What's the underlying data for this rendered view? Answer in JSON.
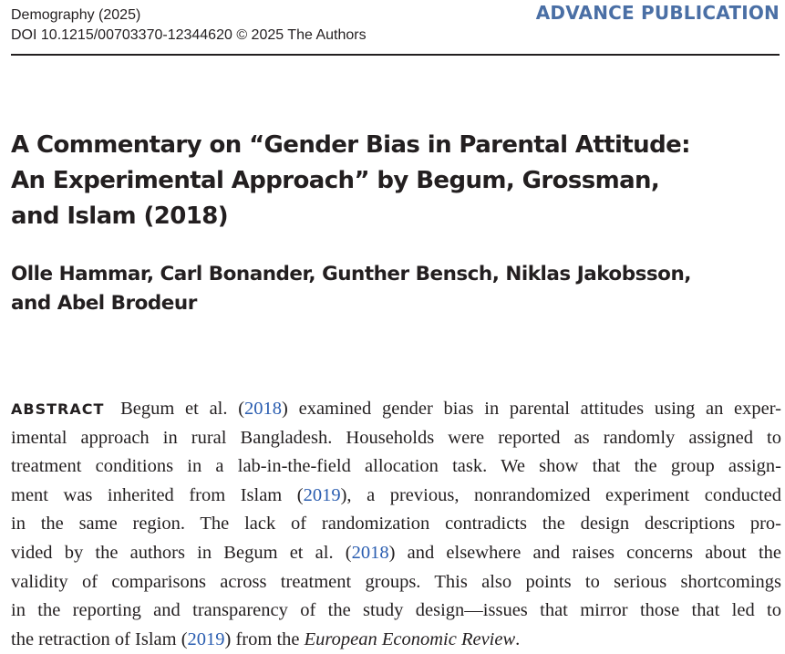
{
  "header": {
    "journal": "Demography (2025)",
    "doi_line": "DOI 10.1215/00703370-12344620  © 2025 The Authors",
    "badge": "ADVANCE PUBLICATION"
  },
  "title": {
    "lines": [
      "A Commentary on “Gender Bias in Parental Attitude:",
      "An Experimental Approach” by Begum, Grossman,",
      "and Islam (2018)"
    ]
  },
  "authors": {
    "lines": [
      "Olle Hammar, Carl Bonander, Gunther Bensch, Niklas Jakobsson,",
      "and Abel Brodeur"
    ]
  },
  "abstract": {
    "label": "ABSTRACT",
    "l1_a": "Begum et al. (",
    "l1_cite": "2018",
    "l1_b": ") examined gender bias in parental attitudes using an exper-",
    "l2": "imental approach in rural Bangladesh. Households were reported as randomly assigned to",
    "l3": "treatment conditions in a lab-in-the-field allocation task. We show that the group assign-",
    "l4_a": "ment was inherited from Islam (",
    "l4_cite": "2019",
    "l4_b": "), a previous, nonrandomized experiment conducted",
    "l5": "in the same region. The lack of randomization contradicts the design descriptions pro-",
    "l6_a": "vided by the authors in Begum et al. (",
    "l6_cite": "2018",
    "l6_b": ") and elsewhere and raises concerns about the",
    "l7": "validity of comparisons across treatment groups. This also points to serious shortcomings",
    "l8": "in the reporting and transparency of the study design—issues that mirror those that led to",
    "l9_a": "the retraction of Islam (",
    "l9_cite": "2019",
    "l9_b": ") from the ",
    "l9_journal": "European Economic Review",
    "l9_end": "."
  },
  "colors": {
    "badge": "#4a6fa5",
    "citation_link": "#2a5db0",
    "text": "#231f20"
  }
}
